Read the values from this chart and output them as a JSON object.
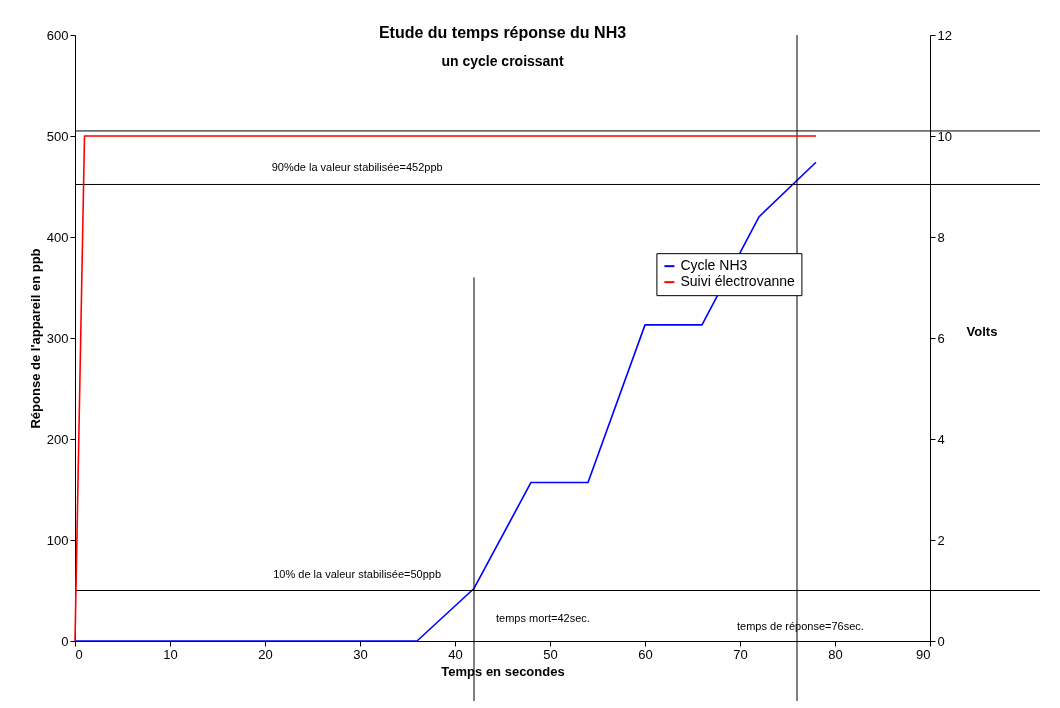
{
  "chart_data": {
    "type": "line",
    "title": "Etude du temps réponse du NH3",
    "subtitle": "un cycle croissant",
    "xlabel": "Temps en secondes",
    "ylabel": "Réponse de l'appareil en ppb",
    "y2label": "Volts",
    "xlim": [
      0,
      90
    ],
    "xticks": [
      0,
      10,
      20,
      30,
      40,
      50,
      60,
      70,
      80,
      90
    ],
    "ylim": [
      0,
      600
    ],
    "yticks": [
      0,
      100,
      200,
      300,
      400,
      500,
      600
    ],
    "y2lim": [
      0,
      12
    ],
    "y2ticks": [
      0,
      2,
      4,
      6,
      8,
      10,
      12
    ],
    "series": [
      {
        "name": "Cycle NH3",
        "color": "#0000ff",
        "x": [
          0,
          6,
          12,
          18,
          24,
          30,
          36,
          42,
          48,
          54,
          60,
          66,
          72,
          78
        ],
        "values": [
          0,
          0,
          0,
          0,
          0,
          0,
          0,
          52,
          157,
          157,
          313,
          313,
          420,
          474
        ]
      },
      {
        "name": "Suivi électrovanne",
        "color": "#ff0000",
        "axis": "y2",
        "x": [
          0,
          1,
          6,
          12,
          18,
          24,
          30,
          36,
          42,
          48,
          54,
          60,
          66,
          72,
          78
        ],
        "values": [
          0,
          10,
          10,
          10,
          10,
          10,
          10,
          10,
          10,
          10,
          10,
          10,
          10,
          10,
          10
        ]
      }
    ],
    "ref_lines": [
      {
        "axis": "y",
        "value": 505,
        "color": "#000000"
      },
      {
        "axis": "y",
        "value": 452,
        "label": "90%de la valeur stabilisée=452ppb",
        "color": "#000000"
      },
      {
        "axis": "y",
        "value": 50,
        "label": "10% de la valeur stabilisée=50ppb",
        "color": "#000000"
      },
      {
        "axis": "x",
        "value": 42,
        "label": "temps mort=42sec.",
        "color": "#000000"
      },
      {
        "axis": "x",
        "value": 76,
        "label": "temps de réponse=76sec.",
        "color": "#000000"
      }
    ],
    "legend": "right",
    "grid": false
  }
}
